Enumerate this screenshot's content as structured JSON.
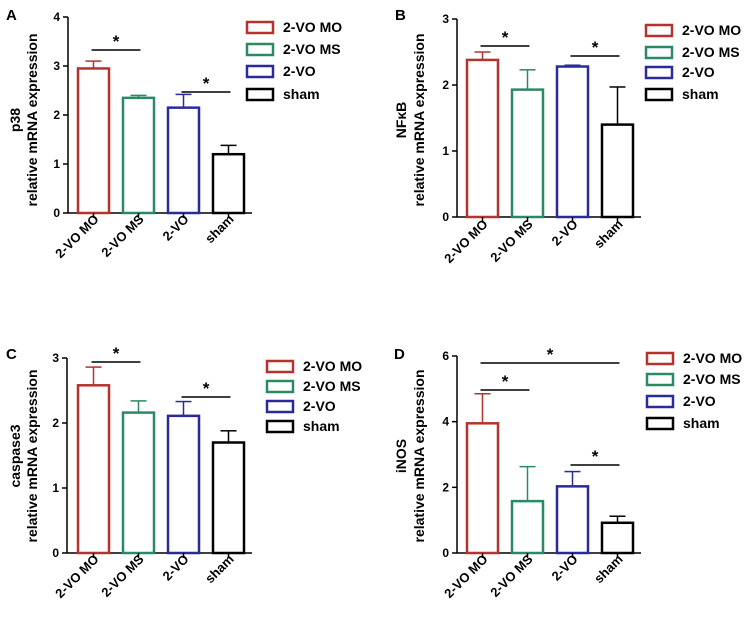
{
  "colors": {
    "2-VO MO": "#b5332c",
    "2-VO MS": "#2a8a63",
    "2-VO": "#2a2a9a",
    "sham": "#000000"
  },
  "chart_data": [
    {
      "type": "bar",
      "panel": "A",
      "ylabel_lines": [
        "p38",
        "relative mRNA expression"
      ],
      "ylim": [
        0,
        4
      ],
      "yticks": [
        0,
        1,
        2,
        3,
        4
      ],
      "categories": [
        "2-VO MO",
        "2-VO MS",
        "2-VO",
        "sham"
      ],
      "values": [
        2.95,
        2.35,
        2.15,
        1.2
      ],
      "errors": [
        0.15,
        0.05,
        0.27,
        0.18
      ],
      "significance": [
        {
          "from": 0,
          "to": 1,
          "label": "*"
        },
        {
          "from": 2,
          "to": 3,
          "label": "*"
        }
      ],
      "legend": [
        "2-VO MO",
        "2-VO MS",
        "2-VO",
        "sham"
      ]
    },
    {
      "type": "bar",
      "panel": "B",
      "ylabel_lines": [
        "NFκB",
        "relative mRNA expression"
      ],
      "ylim": [
        0,
        3
      ],
      "yticks": [
        0,
        1,
        2,
        3
      ],
      "categories": [
        "2-VO MO",
        "2-VO MS",
        "2-VO",
        "sham"
      ],
      "values": [
        2.38,
        1.93,
        2.28,
        1.4
      ],
      "errors": [
        0.12,
        0.3,
        0.02,
        0.57
      ],
      "significance": [
        {
          "from": 0,
          "to": 1,
          "label": "*"
        },
        {
          "from": 2,
          "to": 3,
          "label": "*"
        }
      ],
      "legend": [
        "2-VO MO",
        "2-VO MS",
        "2-VO",
        "sham"
      ]
    },
    {
      "type": "bar",
      "panel": "C",
      "ylabel_lines": [
        "caspase3",
        "relative mRNA expression"
      ],
      "ylim": [
        0,
        3
      ],
      "yticks": [
        0,
        1,
        2,
        3
      ],
      "categories": [
        "2-VO MO",
        "2-VO MS",
        "2-VO",
        "sham"
      ],
      "values": [
        2.58,
        2.16,
        2.11,
        1.7
      ],
      "errors": [
        0.28,
        0.18,
        0.22,
        0.18
      ],
      "significance": [
        {
          "from": 0,
          "to": 1,
          "label": "*"
        },
        {
          "from": 2,
          "to": 3,
          "label": "*"
        }
      ],
      "legend": [
        "2-VO MO",
        "2-VO MS",
        "2-VO",
        "sham"
      ]
    },
    {
      "type": "bar",
      "panel": "D",
      "ylabel_lines": [
        "iNOS",
        "relative mRNA expression"
      ],
      "ylim": [
        0,
        6
      ],
      "yticks": [
        0,
        2,
        4,
        6
      ],
      "categories": [
        "2-VO MO",
        "2-VO MS",
        "2-VO",
        "sham"
      ],
      "values": [
        3.95,
        1.58,
        2.03,
        0.92
      ],
      "errors": [
        0.9,
        1.05,
        0.45,
        0.2
      ],
      "significance": [
        {
          "from": 0,
          "to": 3,
          "label": "*"
        },
        {
          "from": 0,
          "to": 1,
          "label": "*"
        },
        {
          "from": 2,
          "to": 3,
          "label": "*"
        }
      ],
      "legend": [
        "2-VO MO",
        "2-VO MS",
        "2-VO",
        "sham"
      ]
    }
  ]
}
